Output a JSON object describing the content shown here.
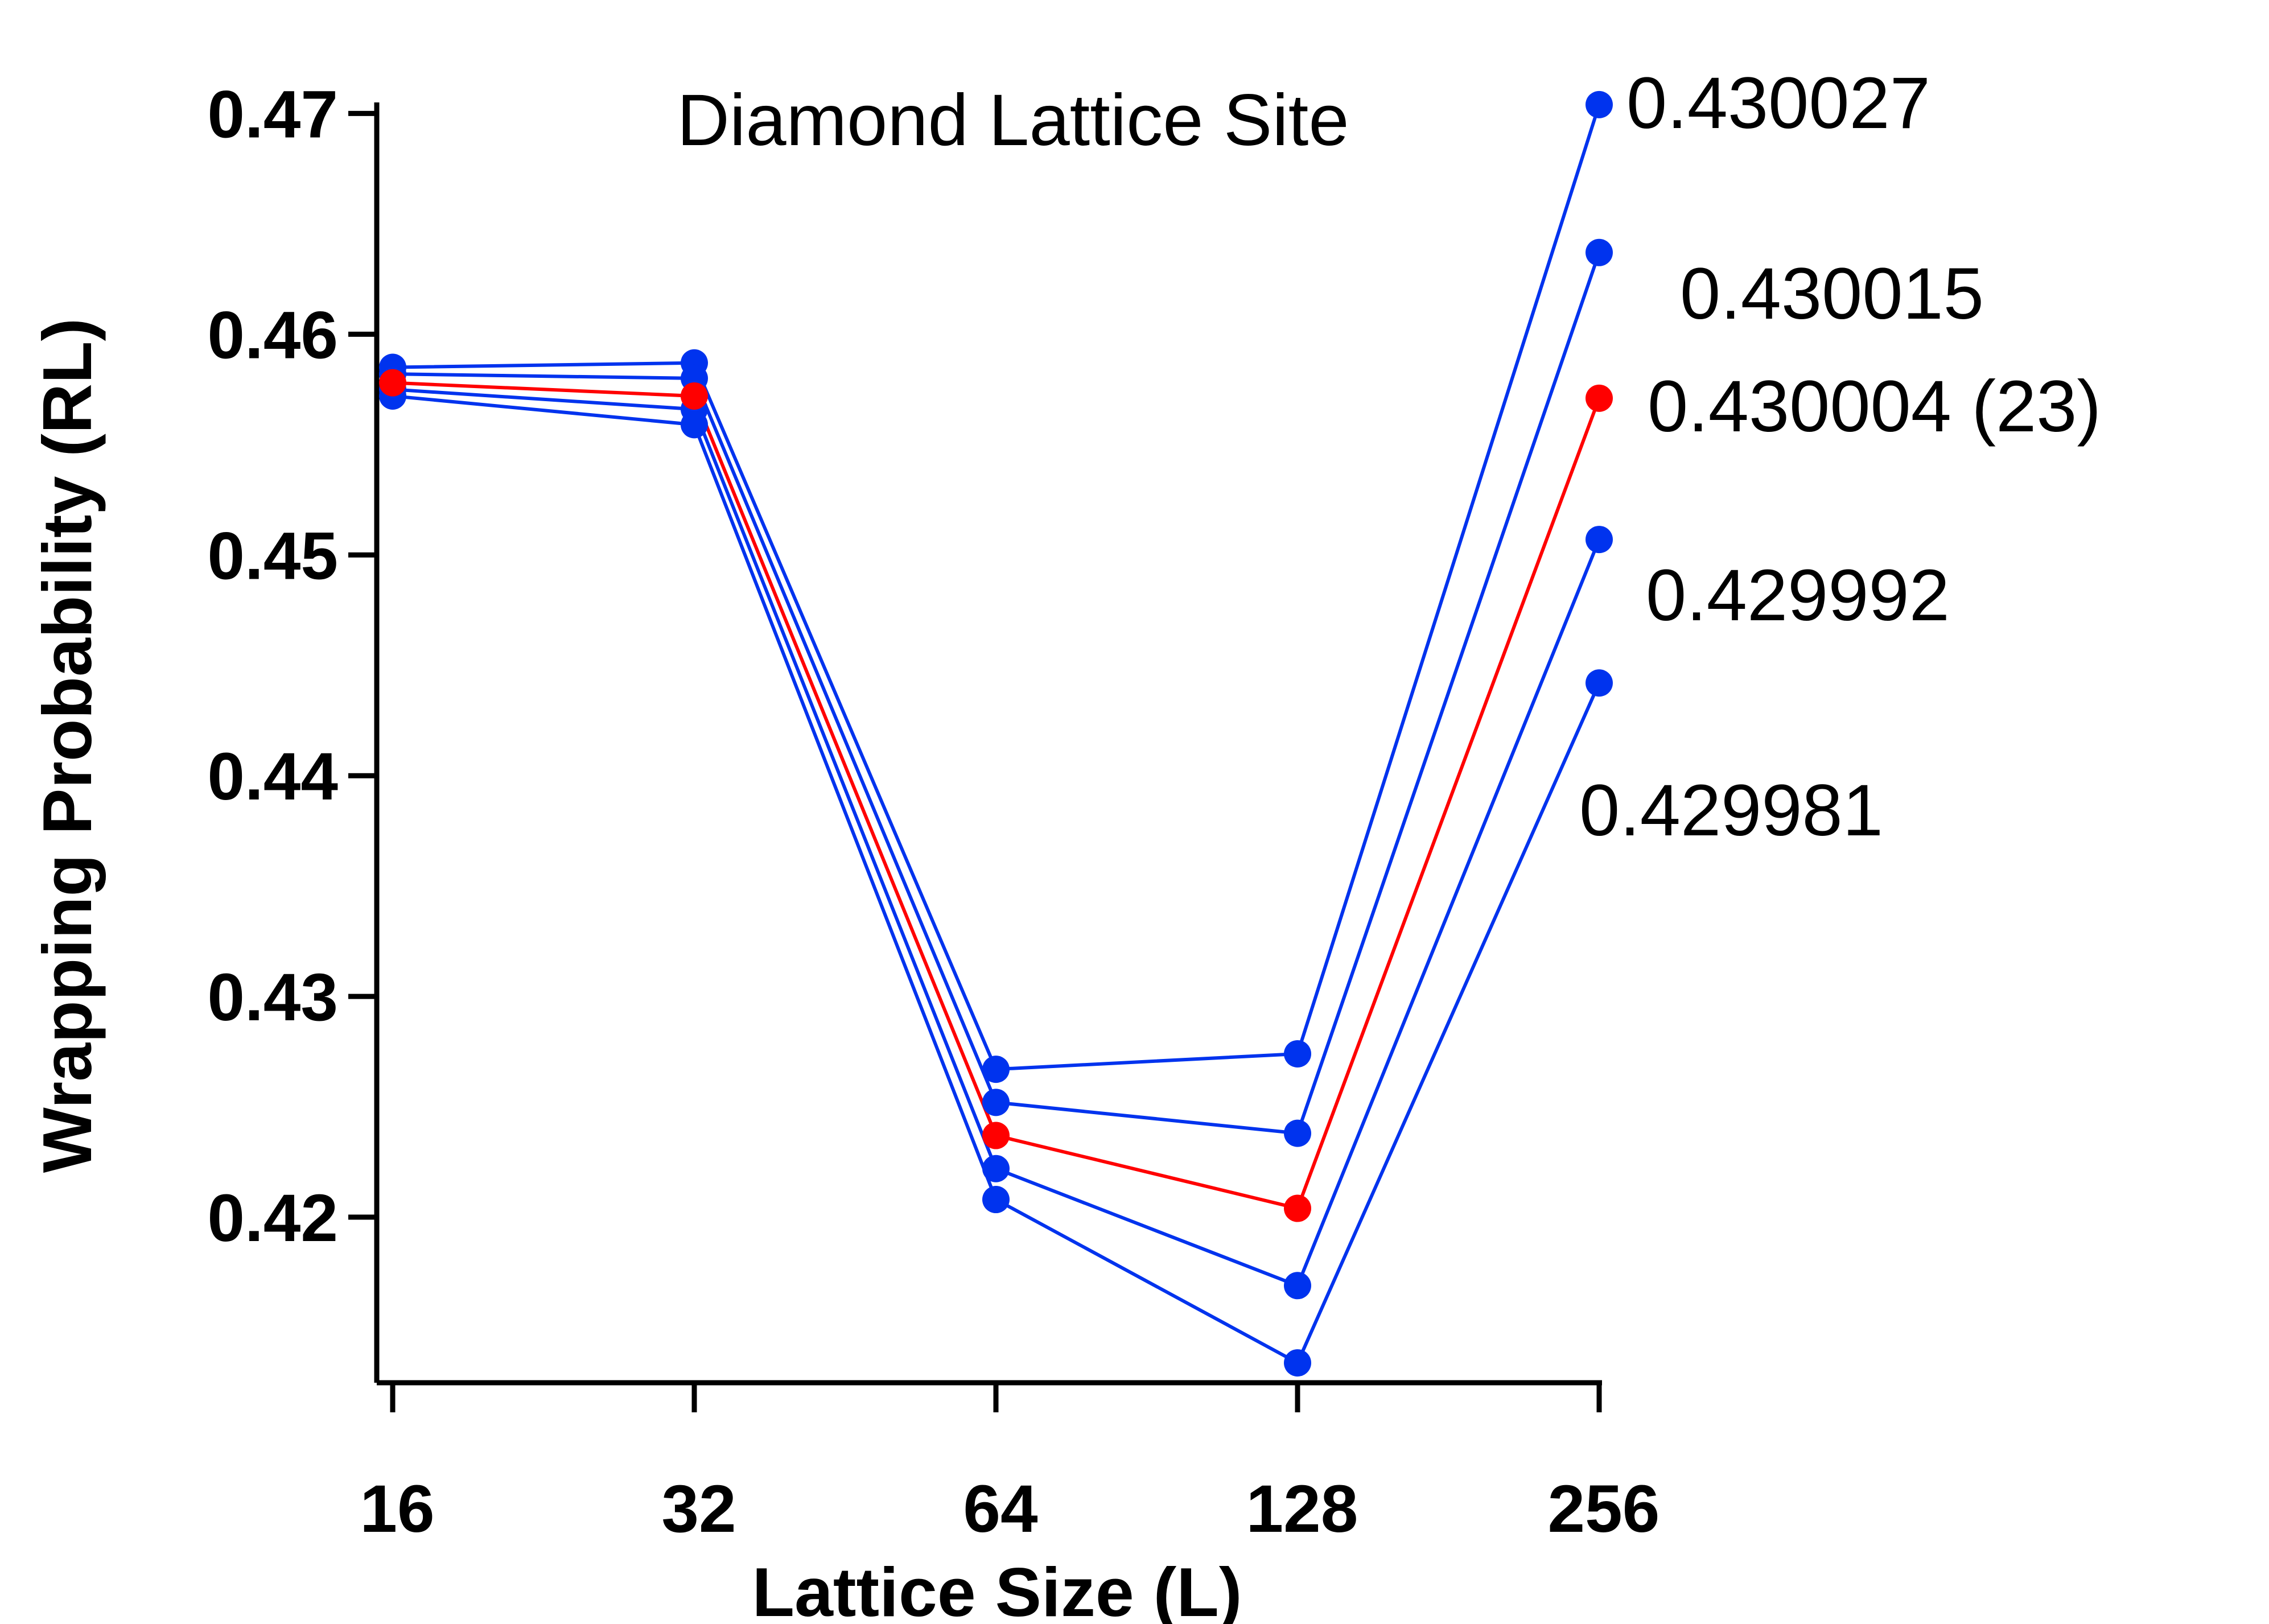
{
  "chart_data": {
    "type": "line",
    "title": "Diamond Lattice Site",
    "xlabel": "Lattice Size (L)",
    "ylabel": "Wrapping Probability (RL)",
    "categories": [
      "16",
      "32",
      "64",
      "128",
      "256"
    ],
    "y_ticks": [
      "0.42",
      "0.43",
      "0.44",
      "0.45",
      "0.46",
      "0.47"
    ],
    "ylim": [
      0.4125,
      0.4705
    ],
    "grid": false,
    "series": [
      {
        "name": "0.430027",
        "color": "#0033ee",
        "values": [
          0.4585,
          0.4587,
          0.4267,
          0.4274,
          0.4704
        ]
      },
      {
        "name": "0.430015",
        "color": "#0033ee",
        "values": [
          0.4582,
          0.458,
          0.4252,
          0.4238,
          0.4637
        ]
      },
      {
        "name": "0.430004 (23)",
        "color": "#ff0000",
        "values": [
          0.4578,
          0.4572,
          0.4237,
          0.4204,
          0.4571
        ]
      },
      {
        "name": "0.429992",
        "color": "#0033ee",
        "values": [
          0.4575,
          0.4566,
          0.4222,
          0.4169,
          0.4507
        ]
      },
      {
        "name": "0.429981",
        "color": "#0033ee",
        "values": [
          0.4572,
          0.4559,
          0.4208,
          0.4134,
          0.4442
        ]
      }
    ]
  }
}
